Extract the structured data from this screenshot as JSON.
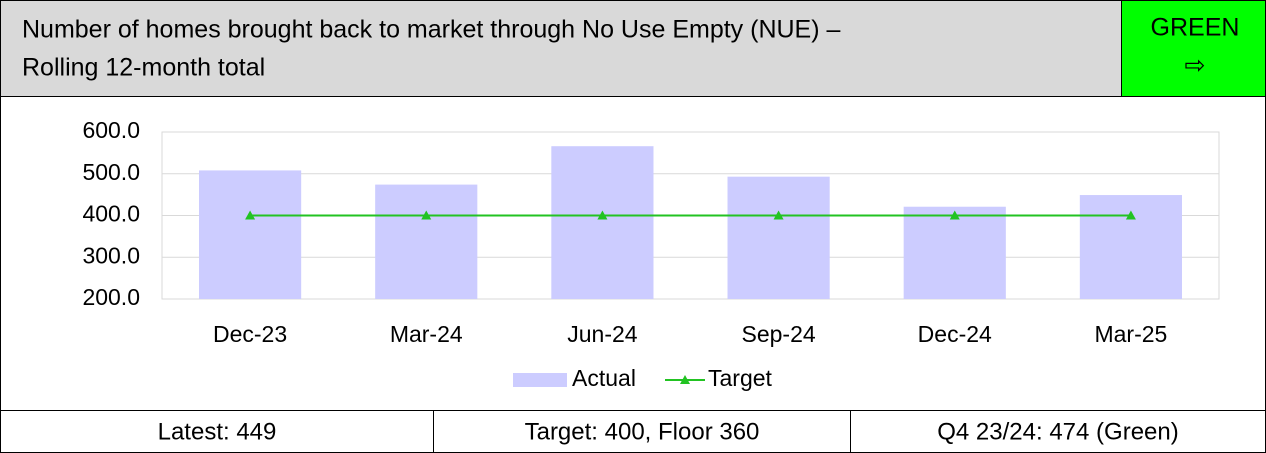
{
  "header": {
    "title_lines": [
      "Number of homes brought back to market through No Use Empty (NUE) –",
      "Rolling 12-month total"
    ],
    "status": "GREEN",
    "status_symbol": "⇨",
    "status_color": "#00ff00"
  },
  "chart_data": {
    "type": "bar_line",
    "categories": [
      "Dec-23",
      "Mar-24",
      "Jun-24",
      "Sep-24",
      "Dec-24",
      "Mar-25"
    ],
    "series": [
      {
        "name": "Actual",
        "type": "bar",
        "color": "#ccccff",
        "values": [
          508,
          474,
          566,
          493,
          421,
          449
        ]
      },
      {
        "name": "Target",
        "type": "line",
        "color": "#22c322",
        "values": [
          400,
          400,
          400,
          400,
          400,
          400
        ]
      }
    ],
    "ylim": [
      200,
      600
    ],
    "yticks": [
      {
        "value": 200,
        "label": "200.0"
      },
      {
        "value": 300,
        "label": "300.0"
      },
      {
        "value": 400,
        "label": "400.0"
      },
      {
        "value": 500,
        "label": "500.0"
      },
      {
        "value": 600,
        "label": "600.0"
      }
    ],
    "grid": true,
    "legend": "bottom"
  },
  "footer": {
    "cells": [
      "Latest: 449",
      "Target: 400, Floor 360",
      "Q4 23/24: 474 (Green)"
    ]
  }
}
